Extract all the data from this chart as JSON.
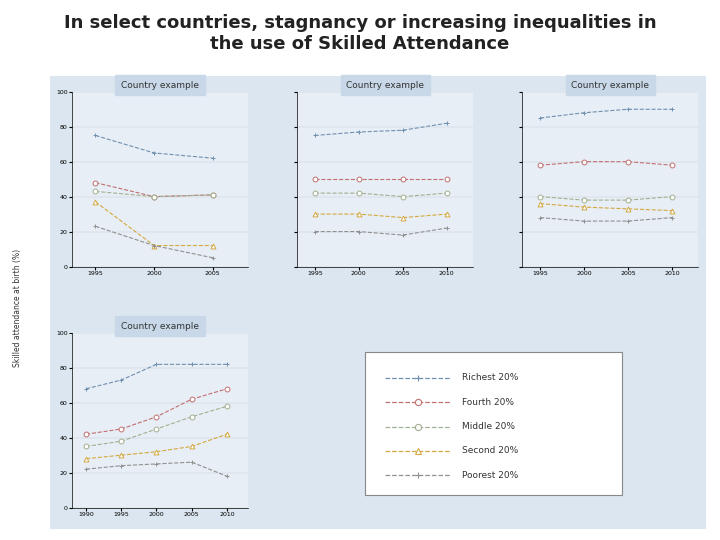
{
  "title_line1": "In select countries, stagnancy or increasing inequalities in",
  "title_line2": "the use of Skilled Attendance",
  "title_fontsize": 13,
  "ylabel": "Skilled attendance at birth (%)",
  "outer_bg": "#dce6f0",
  "panel_bg": "#e8eef5",
  "panel_title": "Country example",
  "years_p1": [
    1995,
    2000,
    2005
  ],
  "years_p2": [
    1995,
    2000,
    2005,
    2010
  ],
  "years_p3": [
    1995,
    2000,
    2005,
    2010
  ],
  "years_p4": [
    1990,
    1995,
    2000,
    2005,
    2010
  ],
  "quintile_labels": [
    "Richest 20%",
    "Fourth 20%",
    "Middle 20%",
    "Second 20%",
    "Poorest 20%"
  ],
  "quintile_colors": [
    "#7090b0",
    "#c07070",
    "#a0b090",
    "#d4a840",
    "#909090"
  ],
  "quintile_markers": [
    "+",
    "o",
    "o",
    "^",
    "+"
  ],
  "panel1": {
    "richest": [
      75,
      65,
      62
    ],
    "fourth": [
      48,
      40,
      41
    ],
    "middle": [
      43,
      40,
      41
    ],
    "second": [
      37,
      12,
      12
    ],
    "poorest": [
      23,
      12,
      5
    ]
  },
  "panel2": {
    "richest": [
      75,
      77,
      78,
      82
    ],
    "fourth": [
      50,
      50,
      50,
      50
    ],
    "middle": [
      42,
      42,
      40,
      42
    ],
    "second": [
      30,
      30,
      28,
      30
    ],
    "poorest": [
      20,
      20,
      18,
      22
    ]
  },
  "panel3": {
    "richest": [
      85,
      88,
      90,
      90
    ],
    "fourth": [
      58,
      60,
      60,
      58
    ],
    "middle": [
      40,
      38,
      38,
      40
    ],
    "second": [
      36,
      34,
      33,
      32
    ],
    "poorest": [
      28,
      26,
      26,
      28
    ]
  },
  "panel4": {
    "richest": [
      68,
      73,
      82,
      82,
      82
    ],
    "fourth": [
      42,
      45,
      52,
      62,
      68
    ],
    "middle": [
      35,
      38,
      45,
      52,
      58
    ],
    "second": [
      28,
      30,
      32,
      35,
      42
    ],
    "poorest": [
      22,
      24,
      25,
      26,
      18
    ]
  }
}
